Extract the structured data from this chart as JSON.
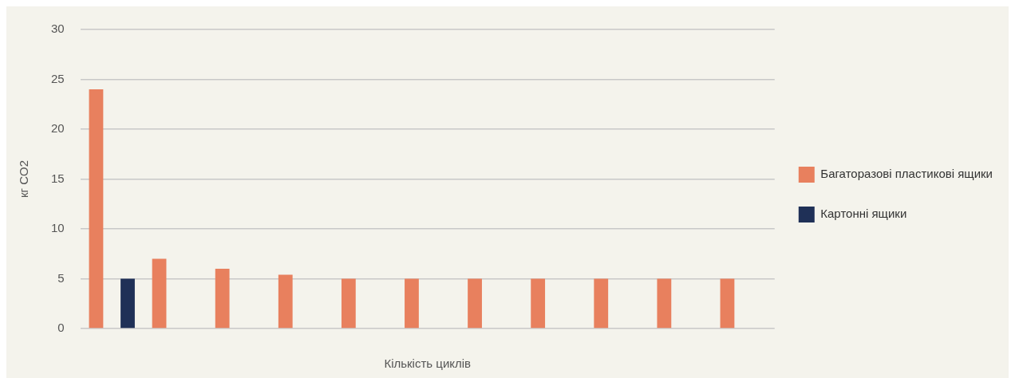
{
  "chart_data": {
    "type": "bar",
    "xlabel": "Кількість циклів",
    "ylabel": "кг CO2",
    "categories": [
      null,
      null,
      null,
      null,
      null,
      null,
      null,
      null,
      null,
      null,
      null
    ],
    "series": [
      {
        "name": "Багаторазові пластикові ящики",
        "color": "#e8805e",
        "values": [
          24,
          7,
          6,
          5.4,
          5,
          5,
          5,
          5,
          5,
          5,
          5
        ]
      },
      {
        "name": "Картонні ящики",
        "color": "#1f3057",
        "values": [
          5,
          null,
          null,
          null,
          null,
          null,
          null,
          null,
          null,
          null,
          null
        ]
      }
    ],
    "ylim": [
      0,
      30
    ],
    "yticks": [
      0,
      5,
      10,
      15,
      20,
      25,
      30
    ],
    "grid": "y",
    "legend": "right"
  }
}
